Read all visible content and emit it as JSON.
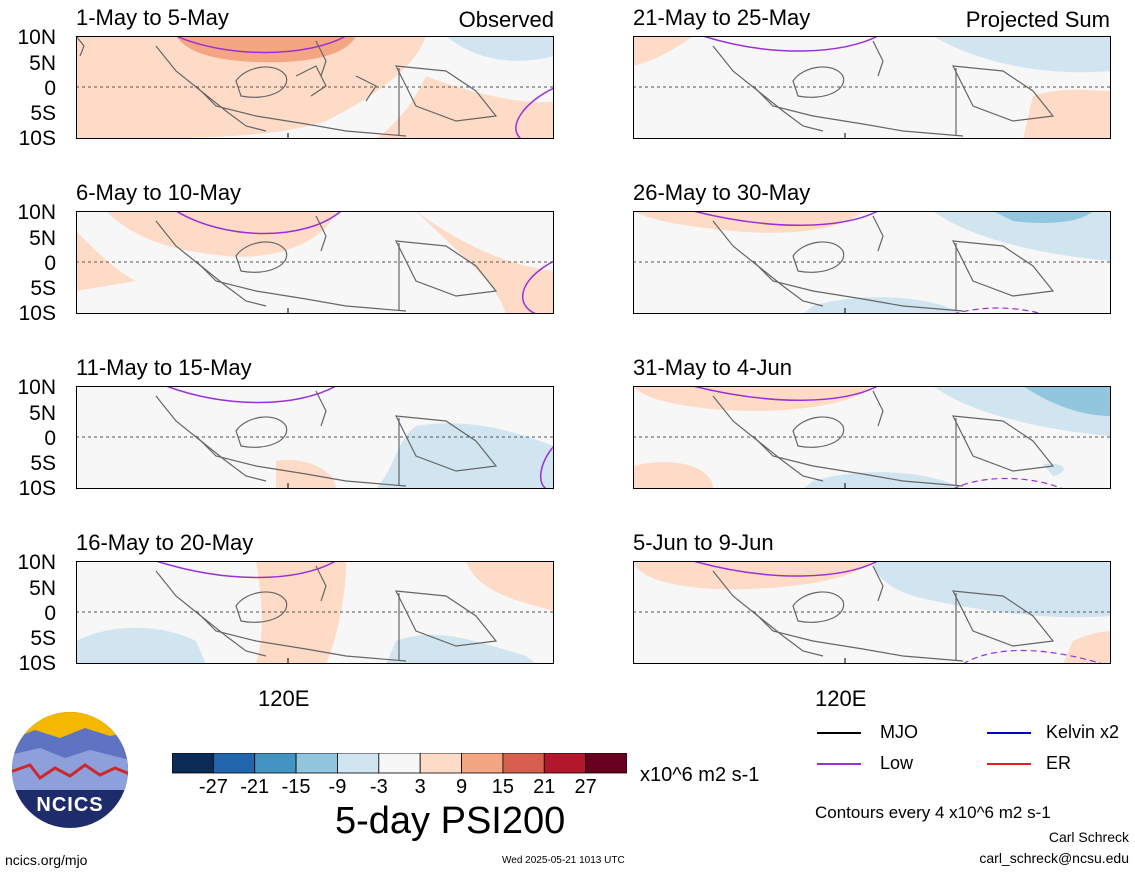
{
  "panels_left": [
    {
      "title": "1-May to 5-May",
      "tag": "Observed"
    },
    {
      "title": "6-May to 10-May",
      "tag": ""
    },
    {
      "title": "11-May to 15-May",
      "tag": ""
    },
    {
      "title": "16-May to 20-May",
      "tag": ""
    }
  ],
  "panels_right": [
    {
      "title": "21-May to 25-May",
      "tag": "Projected Sum"
    },
    {
      "title": "26-May to 30-May",
      "tag": ""
    },
    {
      "title": "31-May to 4-Jun",
      "tag": ""
    },
    {
      "title": "5-Jun to 9-Jun",
      "tag": ""
    }
  ],
  "lat_labels": [
    "10N",
    "5N",
    "0",
    "5S",
    "10S"
  ],
  "lon_label": "120E",
  "colorbar": {
    "colors": [
      "#0b2c57",
      "#2166ac",
      "#4393c3",
      "#92c5de",
      "#d1e5f0",
      "#f7f7f7",
      "#fddbc7",
      "#f4a582",
      "#d6604d",
      "#b2182b",
      "#67001f"
    ],
    "ticks": [
      "-27",
      "-21",
      "-15",
      "-9",
      "-3",
      "3",
      "9",
      "15",
      "21",
      "27"
    ],
    "units": "x10^6 m2 s-1"
  },
  "main_title": "5-day PSI200",
  "legend": [
    {
      "label": "MJO",
      "color": "#000000"
    },
    {
      "label": "Kelvin x2",
      "color": "#0000cc"
    },
    {
      "label": "Low",
      "color": "#9b30d9"
    },
    {
      "label": "ER",
      "color": "#e02020"
    }
  ],
  "contour_note": "Contours every 4 x10^6 m2 s-1",
  "author": "Carl Schreck",
  "email": "carl_schreck@ncsu.edu",
  "site": "ncics.org/mjo",
  "timestamp": "Wed 2025-05-21 1013 UTC",
  "logo_text": "NCICS"
}
